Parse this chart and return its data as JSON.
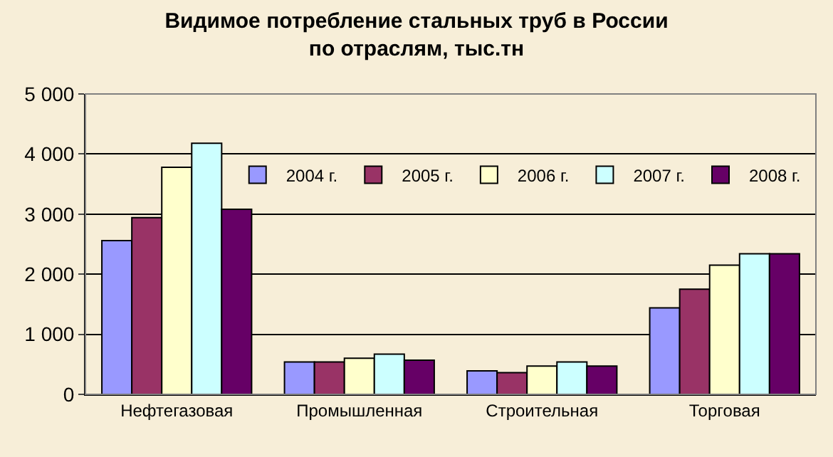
{
  "chart_data": {
    "type": "bar",
    "title": "Видимое потребление стальных труб в России\nпо отраслям, тыс.тн",
    "categories": [
      "Нефтегазовая",
      "Промышленная",
      "Строительная",
      "Торговая"
    ],
    "series": [
      {
        "name": "2004 г.",
        "color": "#9999ff",
        "values": [
          2560,
          540,
          390,
          1440
        ]
      },
      {
        "name": "2005 г.",
        "color": "#993366",
        "values": [
          2940,
          540,
          360,
          1750
        ]
      },
      {
        "name": "2006 г.",
        "color": "#ffffcc",
        "values": [
          3780,
          600,
          470,
          2150
        ]
      },
      {
        "name": "2007 г.",
        "color": "#ccffff",
        "values": [
          4180,
          670,
          540,
          2340
        ]
      },
      {
        "name": "2008 г.",
        "color": "#660066",
        "values": [
          3080,
          570,
          470,
          2340
        ]
      }
    ],
    "ylim": [
      0,
      5000
    ],
    "yticks": [
      {
        "value": 0,
        "label": "0"
      },
      {
        "value": 1000,
        "label": "1 000"
      },
      {
        "value": 2000,
        "label": "2 000"
      },
      {
        "value": 3000,
        "label": "3 000"
      },
      {
        "value": 4000,
        "label": "4 000"
      },
      {
        "value": 5000,
        "label": "5 000"
      }
    ],
    "grid": "y",
    "legend": "top right"
  }
}
